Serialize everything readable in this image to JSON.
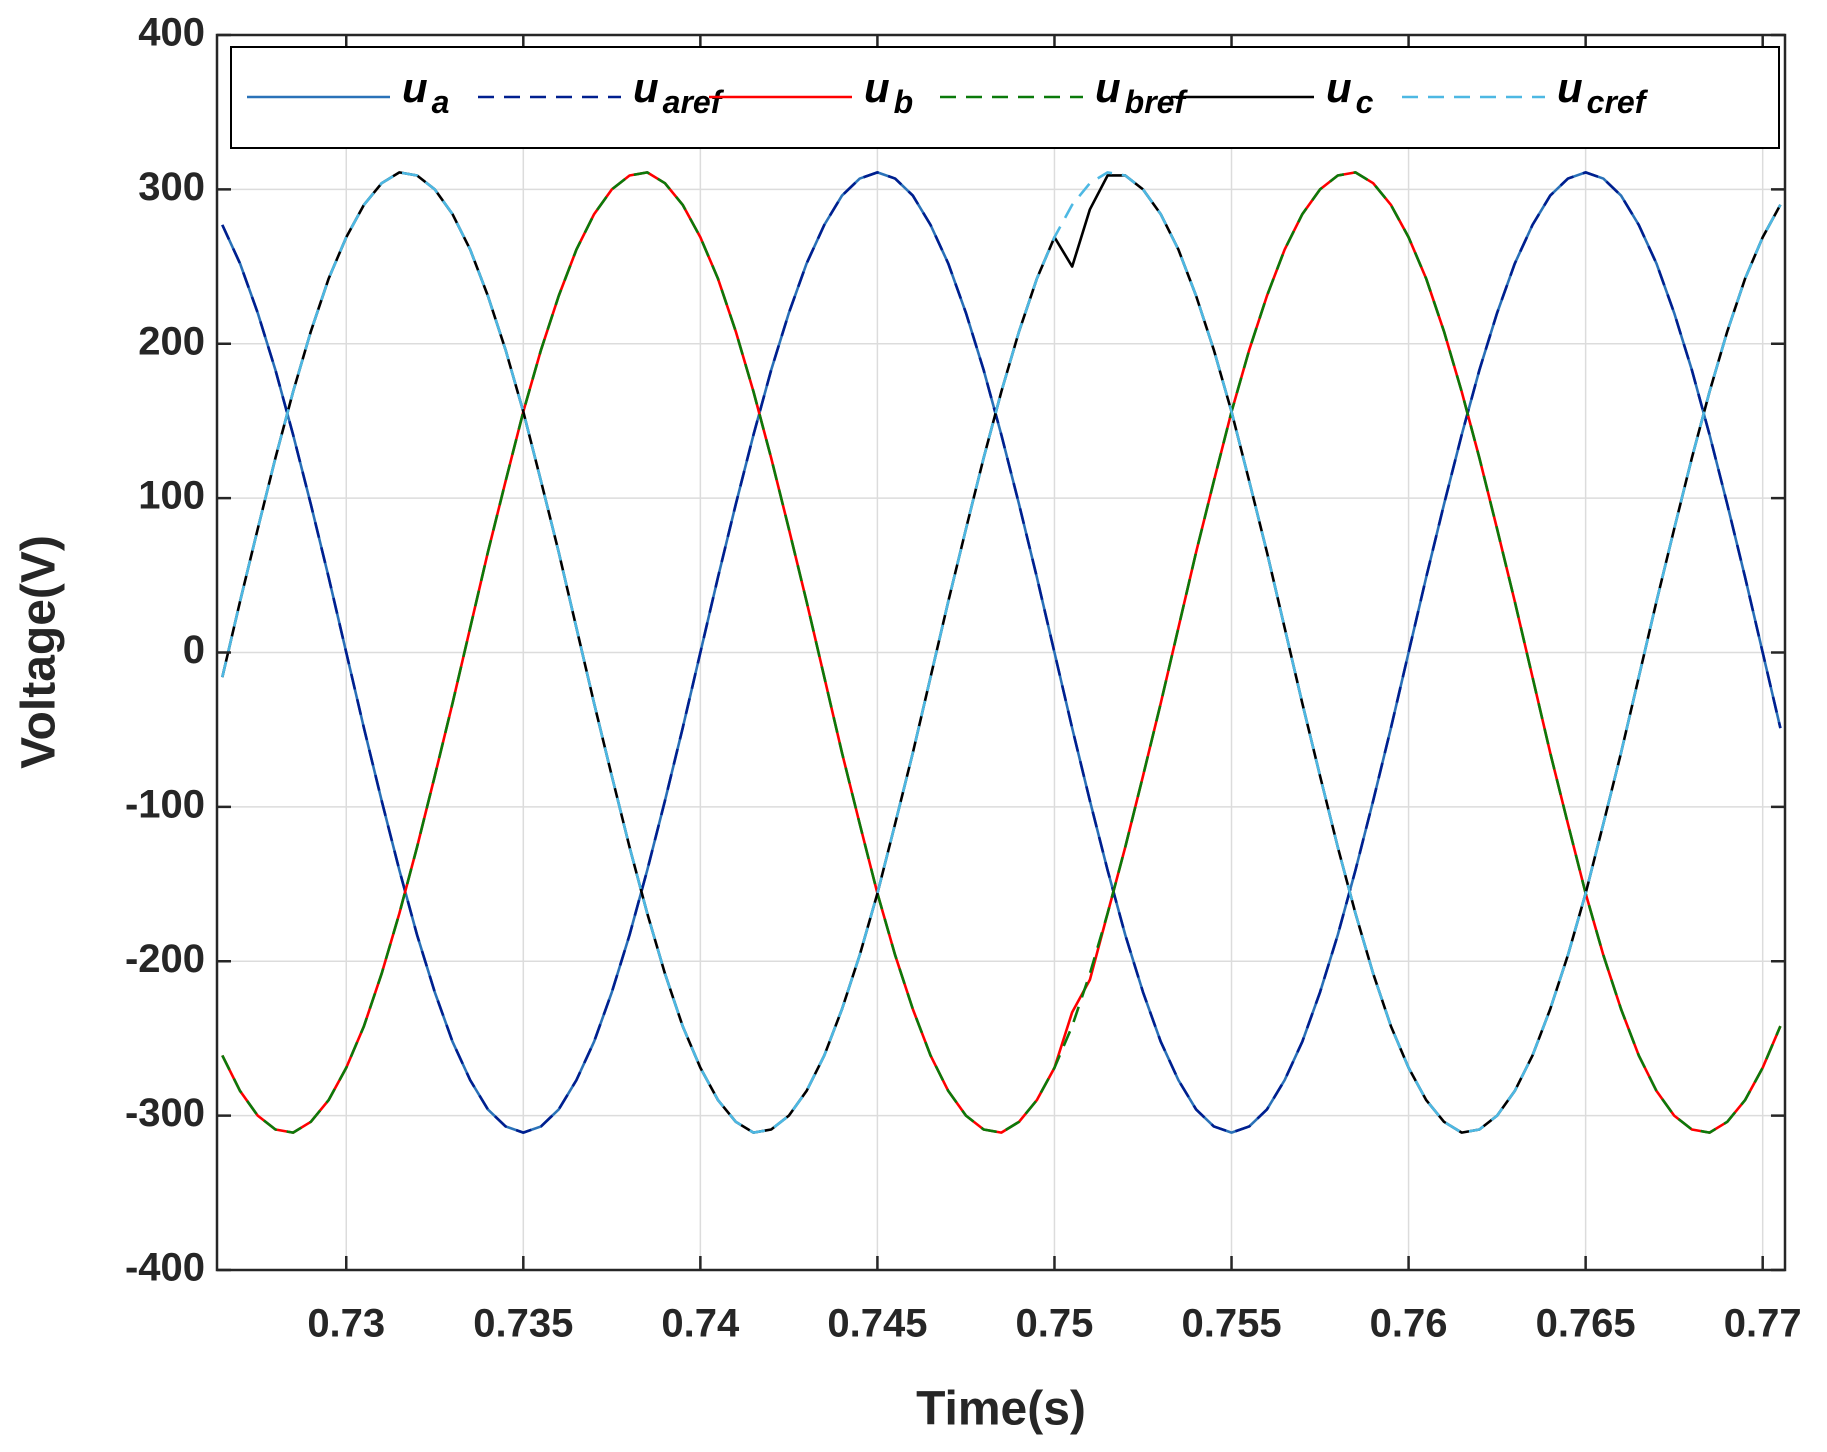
{
  "chart_data": {
    "type": "line",
    "xlabel": "Time(s)",
    "ylabel": "Voltage(V)",
    "xlim": [
      0.72635,
      0.77063
    ],
    "ylim": [
      -400,
      400
    ],
    "xticks": [
      0.73,
      0.735,
      0.74,
      0.745,
      0.75,
      0.755,
      0.76,
      0.765,
      0.77
    ],
    "yticks": [
      -400,
      -300,
      -200,
      -100,
      0,
      100,
      200,
      300,
      400
    ],
    "grid": true,
    "legend": "top",
    "x": [
      0.7265,
      0.727,
      0.7275,
      0.728,
      0.7285,
      0.729,
      0.7295,
      0.73,
      0.7305,
      0.731,
      0.7315,
      0.732,
      0.7325,
      0.733,
      0.7335,
      0.734,
      0.7345,
      0.735,
      0.7355,
      0.736,
      0.7365,
      0.737,
      0.7375,
      0.738,
      0.7385,
      0.739,
      0.7395,
      0.74,
      0.7405,
      0.741,
      0.7415,
      0.742,
      0.7425,
      0.743,
      0.7435,
      0.744,
      0.7445,
      0.745,
      0.7455,
      0.746,
      0.7465,
      0.747,
      0.7475,
      0.748,
      0.7485,
      0.749,
      0.7495,
      0.75,
      0.7505,
      0.751,
      0.7515,
      0.752,
      0.7525,
      0.753,
      0.7535,
      0.754,
      0.7545,
      0.755,
      0.7555,
      0.756,
      0.7565,
      0.757,
      0.7575,
      0.758,
      0.7585,
      0.759,
      0.7595,
      0.76,
      0.7605,
      0.761,
      0.7615,
      0.762,
      0.7625,
      0.763,
      0.7635,
      0.764,
      0.7645,
      0.765,
      0.7655,
      0.766,
      0.7665,
      0.767,
      0.7675,
      0.768,
      0.7685,
      0.769,
      0.7695,
      0.77,
      0.7705
    ],
    "series": [
      {
        "name": "ua",
        "color": "#2a72b8",
        "dash": false,
        "values": [
          277,
          252,
          220,
          183,
          141,
          96,
          49,
          0,
          -49,
          -96,
          -141,
          -183,
          -220,
          -252,
          -277,
          -296,
          -307,
          -311,
          -307,
          -296,
          -277,
          -252,
          -220,
          -183,
          -141,
          -96,
          -49,
          0,
          49,
          96,
          141,
          183,
          220,
          252,
          277,
          296,
          307,
          311,
          307,
          296,
          277,
          252,
          220,
          183,
          141,
          96,
          49,
          0,
          -49,
          -96,
          -141,
          -183,
          -220,
          -252,
          -277,
          -296,
          -307,
          -311,
          -307,
          -296,
          -277,
          -252,
          -220,
          -183,
          -141,
          -96,
          -49,
          0,
          49,
          96,
          141,
          183,
          220,
          252,
          277,
          296,
          307,
          311,
          307,
          296,
          277,
          252,
          220,
          183,
          141,
          96,
          49,
          0,
          -49
        ]
      },
      {
        "name": "uaref",
        "color": "#001f8f",
        "dash": true,
        "values": [
          277,
          252,
          220,
          183,
          141,
          96,
          49,
          0,
          -49,
          -96,
          -141,
          -183,
          -220,
          -252,
          -277,
          -296,
          -307,
          -311,
          -307,
          -296,
          -277,
          -252,
          -220,
          -183,
          -141,
          -96,
          -49,
          0,
          49,
          96,
          141,
          183,
          220,
          252,
          277,
          296,
          307,
          311,
          307,
          296,
          277,
          252,
          220,
          183,
          141,
          96,
          49,
          0,
          -49,
          -96,
          -141,
          -183,
          -220,
          -252,
          -277,
          -296,
          -307,
          -311,
          -307,
          -296,
          -277,
          -252,
          -220,
          -183,
          -141,
          -96,
          -49,
          0,
          49,
          96,
          141,
          183,
          220,
          252,
          277,
          296,
          307,
          311,
          307,
          296,
          277,
          252,
          220,
          183,
          141,
          96,
          49,
          0,
          -49
        ]
      },
      {
        "name": "ub",
        "color": "#ff0000",
        "dash": false,
        "values": [
          -261,
          -284,
          -300,
          -309,
          -311,
          -304,
          -290,
          -269,
          -242,
          -208,
          -169,
          -126,
          -80,
          -33,
          16,
          65,
          111,
          156,
          196,
          231,
          261,
          284,
          300,
          309,
          311,
          304,
          290,
          269,
          242,
          208,
          169,
          126,
          80,
          33,
          -16,
          -65,
          -111,
          -156,
          -196,
          -231,
          -261,
          -284,
          -300,
          -309,
          -311,
          -304,
          -290,
          -269,
          -233,
          -212,
          -169,
          -126,
          -80,
          -33,
          16,
          65,
          111,
          156,
          196,
          231,
          261,
          284,
          300,
          309,
          311,
          304,
          290,
          269,
          242,
          208,
          169,
          126,
          80,
          33,
          -16,
          -65,
          -111,
          -156,
          -196,
          -231,
          -261,
          -284,
          -300,
          -309,
          -311,
          -304,
          -290,
          -269,
          -242
        ]
      },
      {
        "name": "ubref",
        "color": "#0a7a0a",
        "dash": true,
        "values": [
          -261,
          -284,
          -300,
          -309,
          -311,
          -304,
          -290,
          -269,
          -242,
          -208,
          -169,
          -126,
          -80,
          -33,
          16,
          65,
          111,
          156,
          196,
          231,
          261,
          284,
          300,
          309,
          311,
          304,
          290,
          269,
          242,
          208,
          169,
          126,
          80,
          33,
          -16,
          -65,
          -111,
          -156,
          -196,
          -231,
          -261,
          -284,
          -300,
          -309,
          -311,
          -304,
          -290,
          -269,
          -242,
          -208,
          -169,
          -126,
          -80,
          -33,
          16,
          65,
          111,
          156,
          196,
          231,
          261,
          284,
          300,
          309,
          311,
          304,
          290,
          269,
          242,
          208,
          169,
          126,
          80,
          33,
          -16,
          -65,
          -111,
          -156,
          -196,
          -231,
          -261,
          -284,
          -300,
          -309,
          -311,
          -304,
          -290,
          -269,
          -242
        ]
      },
      {
        "name": "uc",
        "color": "#000000",
        "dash": false,
        "values": [
          -16,
          33,
          80,
          126,
          169,
          208,
          242,
          269,
          290,
          304,
          311,
          309,
          300,
          284,
          261,
          231,
          196,
          156,
          111,
          65,
          16,
          -33,
          -80,
          -126,
          -169,
          -208,
          -242,
          -269,
          -290,
          -304,
          -311,
          -309,
          -300,
          -284,
          -261,
          -231,
          -196,
          -156,
          -111,
          -65,
          -16,
          33,
          80,
          126,
          169,
          208,
          242,
          269,
          250,
          287,
          309,
          309,
          300,
          284,
          261,
          231,
          196,
          156,
          111,
          65,
          16,
          -33,
          -80,
          -126,
          -169,
          -208,
          -242,
          -269,
          -290,
          -304,
          -311,
          -309,
          -300,
          -284,
          -261,
          -231,
          -196,
          -156,
          -111,
          -65,
          -16,
          33,
          80,
          126,
          169,
          208,
          242,
          269,
          290
        ]
      },
      {
        "name": "ucref",
        "color": "#4db8e3",
        "dash": true,
        "values": [
          -16,
          33,
          80,
          126,
          169,
          208,
          242,
          269,
          290,
          304,
          311,
          309,
          300,
          284,
          261,
          231,
          196,
          156,
          111,
          65,
          16,
          -33,
          -80,
          -126,
          -169,
          -208,
          -242,
          -269,
          -290,
          -304,
          -311,
          -309,
          -300,
          -284,
          -261,
          -231,
          -196,
          -156,
          -111,
          -65,
          -16,
          33,
          80,
          126,
          169,
          208,
          242,
          269,
          290,
          304,
          311,
          309,
          300,
          284,
          261,
          231,
          196,
          156,
          111,
          65,
          16,
          -33,
          -80,
          -126,
          -169,
          -208,
          -242,
          -269,
          -290,
          -304,
          -311,
          -309,
          -300,
          -284,
          -261,
          -231,
          -196,
          -156,
          -111,
          -65,
          -16,
          33,
          80,
          126,
          169,
          208,
          242,
          269,
          290
        ]
      }
    ]
  }
}
